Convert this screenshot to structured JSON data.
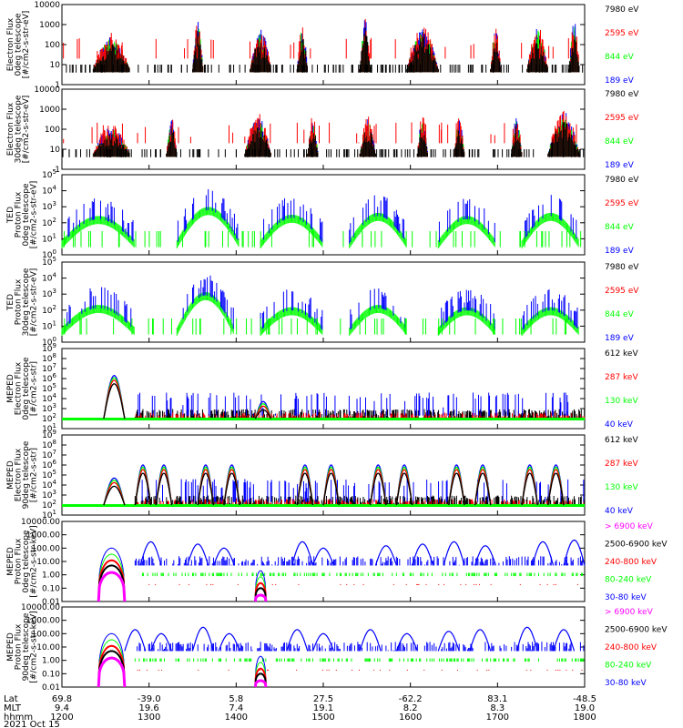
{
  "colors": {
    "black": "#000000",
    "red": "#ff0000",
    "green": "#00ff00",
    "blue": "#0000ff",
    "magenta": "#ff00ff"
  },
  "footer": {
    "row_labels": [
      "Lat",
      "MLT",
      "hhmm"
    ],
    "ticks": [
      {
        "lat": "69.8",
        "mlt": "9.4",
        "hhmm": "1200"
      },
      {
        "lat": "-39.0",
        "mlt": "19.6",
        "hhmm": "1300"
      },
      {
        "lat": "5.8",
        "mlt": "7.4",
        "hhmm": "1400"
      },
      {
        "lat": "27.5",
        "mlt": "19.1",
        "hhmm": "1500"
      },
      {
        "lat": "-62.2",
        "mlt": "8.2",
        "hhmm": "1600"
      },
      {
        "lat": "83.1",
        "mlt": "8.3",
        "hhmm": "1700"
      },
      {
        "lat": "-48.5",
        "mlt": "19.0",
        "hhmm": "1800"
      }
    ],
    "date": "2021 Oct 15"
  },
  "chart_data": [
    {
      "type": "line",
      "instrument": "",
      "ylabel": [
        "Electron Flux",
        "0deg telescope",
        "[#/cm2-s-str-eV]"
      ],
      "ylim": [
        1,
        10000
      ],
      "log": true,
      "ytick_values": [
        1,
        10,
        100,
        1000,
        10000
      ],
      "ytick_labels": [
        "1",
        "10",
        "100",
        "1000",
        "10000"
      ],
      "x_range": [
        "1200",
        "1800"
      ],
      "legend": [
        {
          "label": "7980 eV",
          "color": "#000000"
        },
        {
          "label": "2595 eV",
          "color": "#ff0000"
        },
        {
          "label": "844 eV",
          "color": "#00ff00"
        },
        {
          "label": "189 eV",
          "color": "#0000ff"
        }
      ],
      "bursts": [
        [
          0.06,
          0.13,
          300
        ],
        [
          0.25,
          0.27,
          1500
        ],
        [
          0.36,
          0.4,
          600
        ],
        [
          0.45,
          0.47,
          1000
        ],
        [
          0.57,
          0.59,
          2000
        ],
        [
          0.66,
          0.72,
          800
        ],
        [
          0.82,
          0.84,
          600
        ],
        [
          0.89,
          0.93,
          900
        ],
        [
          0.97,
          0.99,
          1500
        ]
      ]
    },
    {
      "type": "line",
      "instrument": "",
      "ylabel": [
        "Electron Flux",
        "30deg telescope",
        "[#/cm2-s-str-eV]"
      ],
      "ylim": [
        1,
        10000
      ],
      "log": true,
      "ytick_values": [
        1,
        10,
        100,
        1000,
        10000
      ],
      "ytick_labels": [
        "1",
        "10",
        "100",
        "1000",
        "10000"
      ],
      "x_range": [
        "1200",
        "1800"
      ],
      "legend": [
        {
          "label": "7980 eV",
          "color": "#000000"
        },
        {
          "label": "2595 eV",
          "color": "#ff0000"
        },
        {
          "label": "844 eV",
          "color": "#00ff00"
        },
        {
          "label": "189 eV",
          "color": "#0000ff"
        }
      ],
      "bursts": [
        [
          0.06,
          0.13,
          150
        ],
        [
          0.2,
          0.22,
          300
        ],
        [
          0.35,
          0.4,
          500
        ],
        [
          0.47,
          0.49,
          400
        ],
        [
          0.57,
          0.6,
          400
        ],
        [
          0.68,
          0.7,
          500
        ],
        [
          0.75,
          0.77,
          300
        ],
        [
          0.86,
          0.88,
          500
        ],
        [
          0.93,
          0.99,
          800
        ]
      ]
    },
    {
      "type": "line",
      "instrument": "TED",
      "ylabel": [
        "Proton Flux",
        "0deg telescope",
        "[#/cm2-s-str-eV]"
      ],
      "ylim": [
        1,
        100000
      ],
      "log": true,
      "ytick_values": [
        1,
        10,
        100,
        1000,
        10000,
        100000
      ],
      "ytick_labels": [
        "10^0",
        "10^1",
        "10^2",
        "10^3",
        "10^4",
        "10^5"
      ],
      "x_range": [
        "1200",
        "1800"
      ],
      "legend": [
        {
          "label": "7980 eV",
          "color": "#000000"
        },
        {
          "label": "2595 eV",
          "color": "#ff0000"
        },
        {
          "label": "844 eV",
          "color": "#00ff00"
        },
        {
          "label": "189 eV",
          "color": "#0000ff"
        }
      ],
      "arcs": [
        [
          0.0,
          0.14,
          400
        ],
        [
          0.22,
          0.34,
          2000
        ],
        [
          0.38,
          0.5,
          500
        ],
        [
          0.55,
          0.66,
          700
        ],
        [
          0.72,
          0.83,
          400
        ],
        [
          0.88,
          0.99,
          700
        ]
      ]
    },
    {
      "type": "line",
      "instrument": "TED",
      "ylabel": [
        "Proton Flux",
        "30deg telescope",
        "[#/cm2-s-str-eV]"
      ],
      "ylim": [
        1,
        100000
      ],
      "log": true,
      "ytick_values": [
        1,
        10,
        100,
        1000,
        10000,
        100000
      ],
      "ytick_labels": [
        "10^0",
        "10^1",
        "10^2",
        "10^3",
        "10^4",
        "10^5"
      ],
      "x_range": [
        "1200",
        "1800"
      ],
      "legend": [
        {
          "label": "7980 eV",
          "color": "#000000"
        },
        {
          "label": "2595 eV",
          "color": "#ff0000"
        },
        {
          "label": "844 eV",
          "color": "#00ff00"
        },
        {
          "label": "189 eV",
          "color": "#0000ff"
        }
      ],
      "arcs": [
        [
          0.0,
          0.14,
          300
        ],
        [
          0.22,
          0.33,
          3000
        ],
        [
          0.38,
          0.5,
          200
        ],
        [
          0.55,
          0.66,
          300
        ],
        [
          0.72,
          0.83,
          200
        ],
        [
          0.88,
          0.99,
          200
        ]
      ]
    },
    {
      "type": "line",
      "instrument": "MEPED",
      "ylabel": [
        "Electron Flux",
        "0deg telescope",
        "[#/cm2-s-str]"
      ],
      "ylim": [
        10,
        1000000000
      ],
      "log": true,
      "ytick_values": [
        10,
        100,
        1000,
        10000,
        100000,
        1000000,
        10000000,
        100000000,
        1000000000
      ],
      "ytick_labels": [
        "10^1",
        "10^2",
        "10^3",
        "10^4",
        "10^5",
        "10^6",
        "10^7",
        "10^8",
        "10^9"
      ],
      "x_range": [
        "1200",
        "1800"
      ],
      "legend": [
        {
          "label": "612 keV",
          "color": "#000000"
        },
        {
          "label": "287 keV",
          "color": "#ff0000"
        },
        {
          "label": "130 keV",
          "color": "#00ff00"
        },
        {
          "label": "40 keV",
          "color": "#0000ff"
        }
      ],
      "humps": [
        [
          0.08,
          0.12,
          2000000
        ],
        [
          0.37,
          0.4,
          5000
        ]
      ]
    },
    {
      "type": "line",
      "instrument": "MEPED",
      "ylabel": [
        "Electron Flux",
        "90deg telescope",
        "[#/cm2-s-str]"
      ],
      "ylim": [
        10,
        1000000000
      ],
      "log": true,
      "ytick_values": [
        10,
        100,
        1000,
        10000,
        100000,
        1000000,
        10000000,
        100000000,
        1000000000
      ],
      "ytick_labels": [
        "10^1",
        "10^2",
        "10^3",
        "10^4",
        "10^5",
        "10^6",
        "10^7",
        "10^8",
        "10^9"
      ],
      "x_range": [
        "1200",
        "1800"
      ],
      "legend": [
        {
          "label": "612 keV",
          "color": "#000000"
        },
        {
          "label": "287 keV",
          "color": "#ff0000"
        },
        {
          "label": "130 keV",
          "color": "#00ff00"
        },
        {
          "label": "40 keV",
          "color": "#0000ff"
        }
      ],
      "humps": [
        [
          0.08,
          0.12,
          50000
        ],
        [
          0.14,
          0.17,
          1000000
        ],
        [
          0.18,
          0.21,
          1000000
        ],
        [
          0.26,
          0.29,
          1000000
        ],
        [
          0.31,
          0.34,
          1000000
        ],
        [
          0.45,
          0.48,
          1000000
        ],
        [
          0.5,
          0.53,
          1000000
        ],
        [
          0.59,
          0.62,
          1000000
        ],
        [
          0.64,
          0.67,
          1000000
        ],
        [
          0.74,
          0.77,
          1000000
        ],
        [
          0.79,
          0.82,
          1000000
        ],
        [
          0.88,
          0.91,
          1000000
        ],
        [
          0.93,
          0.96,
          1000000
        ]
      ]
    },
    {
      "type": "line",
      "instrument": "MEPED",
      "ylabel": [
        "Proton Flux",
        "0deg telescope",
        "[#/cm2-s-str-keV]"
      ],
      "ylim": [
        0.01,
        10000
      ],
      "log": true,
      "ytick_values": [
        0.01,
        0.1,
        1,
        10,
        100,
        1000,
        10000
      ],
      "ytick_labels": [
        "0.01",
        "0.10",
        "1.00",
        "10.00",
        "100.00",
        "1000.00",
        "10000.00"
      ],
      "x_range": [
        "1200",
        "1800"
      ],
      "legend": [
        {
          "label": "> 6900 keV",
          "color": "#ff00ff"
        },
        {
          "label": "2500-6900 keV",
          "color": "#000000"
        },
        {
          "label": "240-800 keV",
          "color": "#ff0000"
        },
        {
          "label": "80-240 keV",
          "color": "#00ff00"
        },
        {
          "label": "30-80 keV",
          "color": "#0000ff"
        }
      ],
      "sep_humps": [
        [
          0.07,
          0.12,
          100
        ],
        [
          0.37,
          0.39,
          2
        ]
      ],
      "peaks": [
        [
          0.17,
          300
        ],
        [
          0.26,
          200
        ],
        [
          0.31,
          100
        ],
        [
          0.46,
          300
        ],
        [
          0.5,
          100
        ],
        [
          0.62,
          150
        ],
        [
          0.69,
          200
        ],
        [
          0.75,
          300
        ],
        [
          0.81,
          150
        ],
        [
          0.92,
          300
        ],
        [
          0.98,
          400
        ]
      ]
    },
    {
      "type": "line",
      "instrument": "MEPED",
      "ylabel": [
        "Proton Flux",
        "90deg telescope",
        "[#/cm2-s-str-keV]"
      ],
      "ylim": [
        0.01,
        10000
      ],
      "log": true,
      "ytick_values": [
        0.01,
        0.1,
        1,
        10,
        100,
        1000,
        10000
      ],
      "ytick_labels": [
        "0.01",
        "0.10",
        "1.00",
        "10.00",
        "100.00",
        "1000.00",
        "10000.00"
      ],
      "x_range": [
        "1200",
        "1800"
      ],
      "legend": [
        {
          "label": "> 6900 keV",
          "color": "#ff00ff"
        },
        {
          "label": "2500-6900 keV",
          "color": "#000000"
        },
        {
          "label": "240-800 keV",
          "color": "#ff0000"
        },
        {
          "label": "80-240 keV",
          "color": "#00ff00"
        },
        {
          "label": "30-80 keV",
          "color": "#0000ff"
        }
      ],
      "sep_humps": [
        [
          0.07,
          0.12,
          100
        ],
        [
          0.37,
          0.39,
          2
        ]
      ],
      "peaks": [
        [
          0.14,
          200
        ],
        [
          0.19,
          100
        ],
        [
          0.27,
          300
        ],
        [
          0.32,
          100
        ],
        [
          0.45,
          200
        ],
        [
          0.5,
          100
        ],
        [
          0.59,
          200
        ],
        [
          0.66,
          100
        ],
        [
          0.74,
          150
        ],
        [
          0.8,
          200
        ],
        [
          0.89,
          300
        ],
        [
          0.96,
          200
        ]
      ]
    }
  ]
}
